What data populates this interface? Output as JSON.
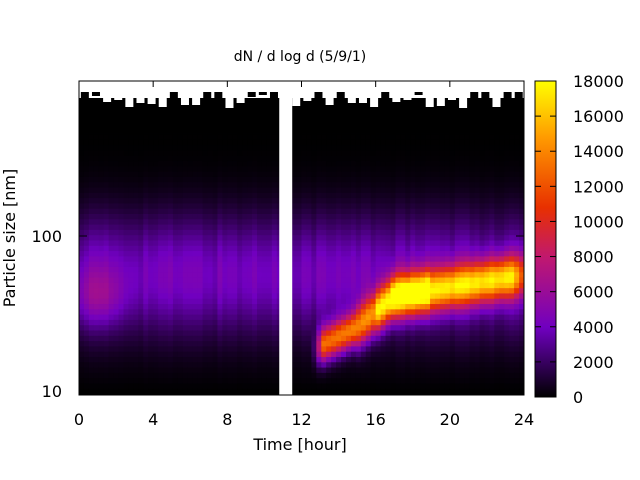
{
  "chart_data": {
    "type": "heatmap",
    "title": "dN / d log d (5/9/1)",
    "xlabel": "Time [hour]",
    "ylabel": "Particle size [nm]",
    "x_range": [
      0,
      24
    ],
    "y_range_nm": [
      9,
      1000
    ],
    "y_scale": "log",
    "x_ticks": [
      0,
      4,
      8,
      12,
      16,
      20,
      24
    ],
    "x_tick_labels": [
      "0",
      "4",
      "8",
      "12",
      "16",
      "20",
      "24"
    ],
    "y_ticks": [
      10,
      100
    ],
    "y_tick_labels": [
      "10",
      "100"
    ],
    "colorbar": {
      "range": [
        0,
        18000
      ],
      "ticks": [
        0,
        2000,
        4000,
        6000,
        8000,
        10000,
        12000,
        14000,
        16000,
        18000
      ],
      "tick_labels": [
        "0",
        "2000",
        "4000",
        "6000",
        "8000",
        "10000",
        "12000",
        "14000",
        "16000",
        "18000"
      ],
      "colors": [
        "#000000",
        "#7000c0",
        "#c01870",
        "#e83000",
        "#ff9a00",
        "#ffff00"
      ]
    },
    "data_gap_hours": [
      10.8,
      11.5
    ],
    "features": [
      {
        "hour": 1,
        "size_nm": 40,
        "value": 6500
      },
      {
        "hour": 13,
        "size_nm": 18,
        "value": 12000
      },
      {
        "hour": 17.5,
        "size_nm": 40,
        "value": 17000
      },
      {
        "hour": 21,
        "size_nm": 46,
        "value": 13000
      }
    ]
  }
}
